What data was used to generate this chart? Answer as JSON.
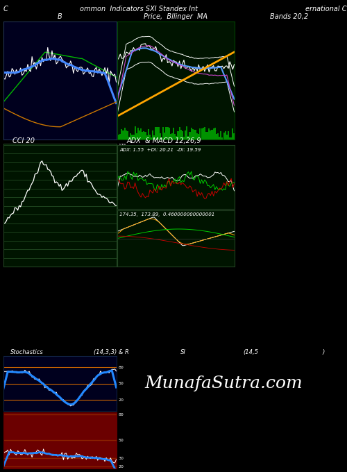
{
  "title_top": "ommon  Indicators SXI Standex Int",
  "title_top_right": "ernational C",
  "title_top_left": "C",
  "bg_color": "#000000",
  "panel1_bg": "#00001e",
  "panel2_bg": "#001400",
  "panel3_bg": "#001400",
  "panel4_bg": "#001400",
  "panel5_bg": "#00001e",
  "panel6_bg": "#6b0000",
  "panel_labels": [
    "B",
    "Price,  Bllinger  MA",
    "Bands 20,2",
    "CCI 20",
    "ADX  & MACD 12,26,9",
    "Stochastics",
    "(14,3,3) & R",
    "SI",
    "(14,5",
    ")"
  ],
  "adx_label": "ADX: 1.55  +DI: 20.21  -DI: 19.59",
  "macd_label": "174.35,  173.89,  0.460000000000001",
  "watermark": "MunafaSutra.com",
  "stoch_yticks": [
    80,
    50,
    20
  ],
  "rsi_yticks": [
    80,
    50,
    30,
    20
  ]
}
